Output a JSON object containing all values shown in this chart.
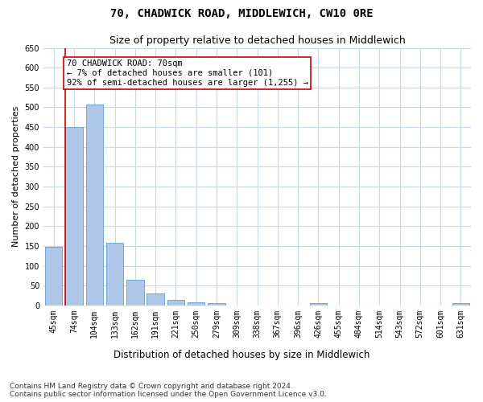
{
  "title": "70, CHADWICK ROAD, MIDDLEWICH, CW10 0RE",
  "subtitle": "Size of property relative to detached houses in Middlewich",
  "xlabel": "Distribution of detached houses by size in Middlewich",
  "ylabel": "Number of detached properties",
  "categories": [
    "45sqm",
    "74sqm",
    "104sqm",
    "133sqm",
    "162sqm",
    "191sqm",
    "221sqm",
    "250sqm",
    "279sqm",
    "309sqm",
    "338sqm",
    "367sqm",
    "396sqm",
    "426sqm",
    "455sqm",
    "484sqm",
    "514sqm",
    "543sqm",
    "572sqm",
    "601sqm",
    "631sqm"
  ],
  "values": [
    148,
    450,
    507,
    158,
    65,
    30,
    13,
    8,
    5,
    0,
    0,
    0,
    0,
    5,
    0,
    0,
    0,
    0,
    0,
    0,
    5
  ],
  "bar_color": "#aec6e8",
  "bar_edgecolor": "#5a9fd4",
  "highlight_bar_index": 1,
  "highlight_color": "#cc0000",
  "annotation_text": "70 CHADWICK ROAD: 70sqm\n← 7% of detached houses are smaller (101)\n92% of semi-detached houses are larger (1,255) →",
  "annotation_box_edgecolor": "#cc0000",
  "annotation_box_facecolor": "#ffffff",
  "ylim": [
    0,
    650
  ],
  "yticks": [
    0,
    50,
    100,
    150,
    200,
    250,
    300,
    350,
    400,
    450,
    500,
    550,
    600,
    650
  ],
  "bg_color": "#ffffff",
  "grid_color": "#c8d8e8",
  "footer_text": "Contains HM Land Registry data © Crown copyright and database right 2024.\nContains public sector information licensed under the Open Government Licence v3.0.",
  "title_fontsize": 10,
  "subtitle_fontsize": 9,
  "xlabel_fontsize": 8.5,
  "ylabel_fontsize": 8,
  "tick_fontsize": 7,
  "annotation_fontsize": 7.5,
  "footer_fontsize": 6.5
}
